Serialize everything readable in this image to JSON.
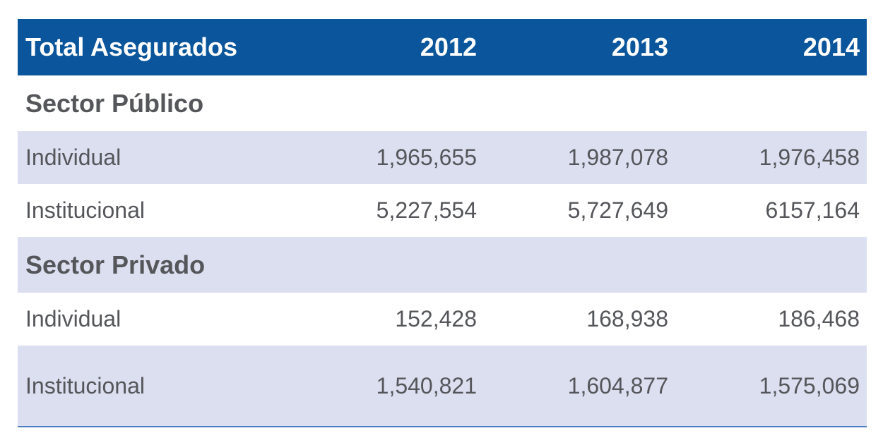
{
  "table": {
    "header": {
      "label": "Total Asegurados",
      "years": [
        "2012",
        "2013",
        "2014"
      ]
    },
    "sections": [
      {
        "title": "Sector Público",
        "rows": [
          {
            "label": "Individual",
            "values": [
              "1,965,655",
              "1,987,078",
              "1,976,458"
            ]
          },
          {
            "label": "Institucional",
            "values": [
              "5,227,554",
              "5,727,649",
              "6157,164"
            ]
          }
        ]
      },
      {
        "title": "Sector Privado",
        "rows": [
          {
            "label": "Individual",
            "values": [
              "152,428",
              "168,938",
              "186,468"
            ]
          },
          {
            "label": "Institucional",
            "values": [
              "1,540,821",
              "1,604,877",
              "1,575,069"
            ]
          }
        ]
      }
    ],
    "colors": {
      "header_bg": "#0a559b",
      "shade_bg": "#dcdff0",
      "text": "#54565a",
      "rule": "#4f7fc0"
    }
  }
}
